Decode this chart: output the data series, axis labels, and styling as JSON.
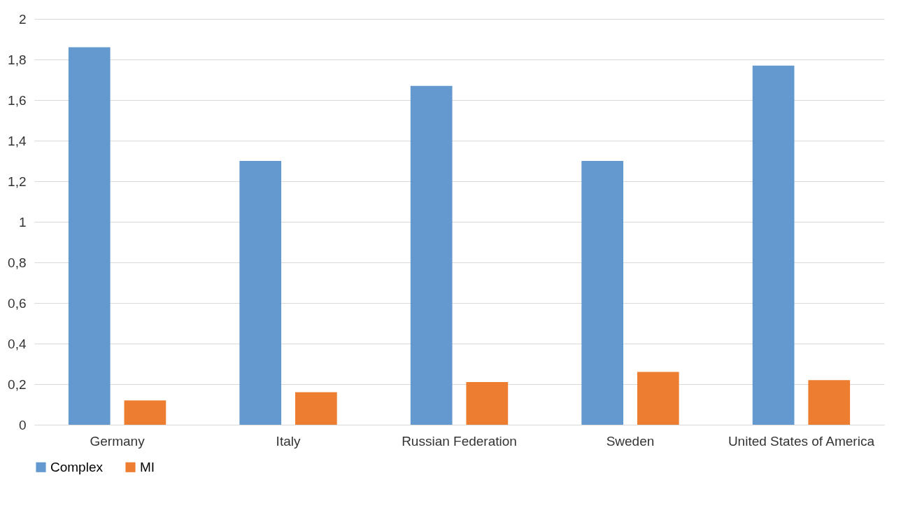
{
  "chart_data": {
    "type": "bar",
    "categories": [
      "Germany",
      "Italy",
      "Russian Federation",
      "Sweden",
      "United States of America"
    ],
    "series": [
      {
        "name": "Complex",
        "color": "#6399cf",
        "values": [
          1.86,
          1.3,
          1.67,
          1.3,
          1.77
        ]
      },
      {
        "name": "MI",
        "color": "#ed7d31",
        "values": [
          0.12,
          0.16,
          0.21,
          0.26,
          0.22
        ]
      }
    ],
    "ylim": [
      0,
      2
    ],
    "yticks": [
      0,
      {
        "value": 0.2,
        "label": "0,2"
      },
      {
        "value": 0.4,
        "label": "0,4"
      },
      {
        "value": 0.6,
        "label": "0,6"
      },
      {
        "value": 0.8,
        "label": "0,8"
      },
      1,
      {
        "value": 1.2,
        "label": "1,2"
      },
      {
        "value": 1.4,
        "label": "1,4"
      },
      {
        "value": 1.6,
        "label": "1,6"
      },
      {
        "value": 1.8,
        "label": "1,8"
      },
      2
    ],
    "grid": "y",
    "legend": "bottom"
  }
}
